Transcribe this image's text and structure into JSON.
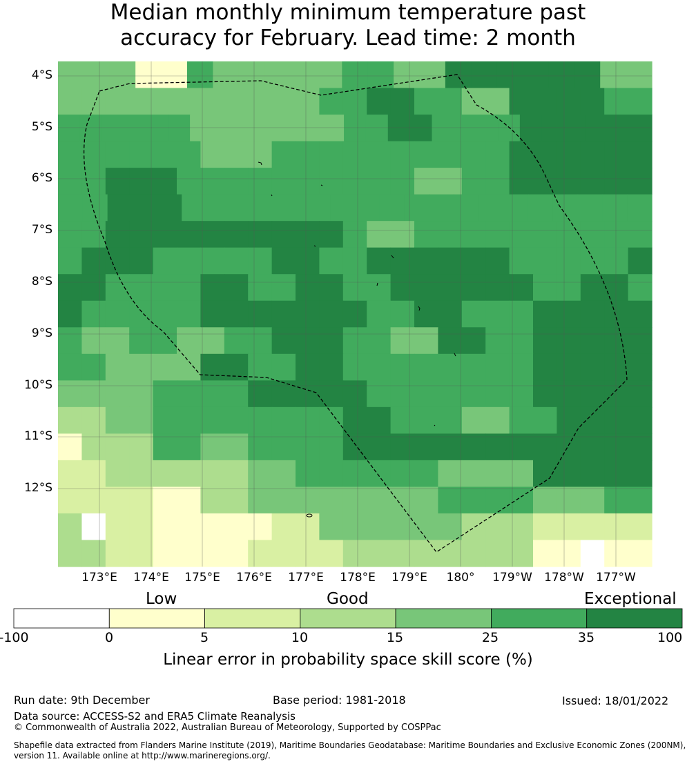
{
  "title_line1": "Median monthly minimum temperature past",
  "title_line2": "accuracy for February. Lead time: 2 month",
  "map": {
    "lat_labels": [
      "4°S",
      "5°S",
      "6°S",
      "7°S",
      "8°S",
      "9°S",
      "10°S",
      "11°S",
      "12°S"
    ],
    "lon_labels": [
      "173°E",
      "174°E",
      "175°E",
      "176°E",
      "177°E",
      "178°E",
      "179°E",
      "180°",
      "179°W",
      "178°W",
      "177°W"
    ],
    "skill_grid": [
      [
        4,
        4,
        4,
        1,
        1,
        5,
        4,
        4,
        4,
        4,
        4,
        5,
        5,
        4,
        4,
        6,
        6,
        6,
        6,
        6,
        6,
        4,
        4
      ],
      [
        4,
        4,
        4,
        4,
        4,
        4,
        4,
        4,
        4,
        4,
        4,
        5,
        5,
        6,
        6,
        5,
        5,
        4,
        4,
        6,
        6,
        6,
        6,
        5,
        5
      ],
      [
        5,
        5,
        5,
        5,
        5,
        5,
        4,
        4,
        4,
        4,
        4,
        4,
        4,
        5,
        5,
        6,
        6,
        5,
        5,
        5,
        5,
        6,
        6,
        6,
        6,
        6,
        6
      ],
      [
        5,
        5,
        5,
        5,
        5,
        5,
        4,
        4,
        4,
        5,
        5,
        5,
        5,
        5,
        5,
        5,
        5,
        5,
        5,
        6,
        6,
        6,
        6,
        6,
        6
      ],
      [
        5,
        5,
        6,
        6,
        6,
        5,
        5,
        5,
        5,
        5,
        5,
        5,
        5,
        5,
        5,
        4,
        4,
        5,
        5,
        6,
        6,
        6,
        6,
        6,
        6
      ],
      [
        5,
        5,
        6,
        6,
        6,
        5,
        5,
        5,
        5,
        5,
        5,
        5,
        5,
        5,
        5,
        5,
        5,
        5,
        5,
        5,
        5,
        5,
        5,
        5
      ],
      [
        5,
        5,
        6,
        6,
        6,
        6,
        6,
        6,
        6,
        6,
        6,
        6,
        5,
        4,
        4,
        5,
        5,
        5,
        5,
        5,
        5,
        5,
        5,
        5,
        5
      ],
      [
        5,
        6,
        6,
        6,
        5,
        5,
        5,
        5,
        5,
        6,
        6,
        5,
        5,
        6,
        6,
        6,
        6,
        6,
        6,
        5,
        5,
        5,
        5,
        5,
        6
      ],
      [
        6,
        6,
        5,
        5,
        5,
        5,
        6,
        6,
        5,
        5,
        6,
        6,
        5,
        5,
        6,
        6,
        6,
        6,
        6,
        6,
        5,
        5,
        6,
        6,
        5
      ],
      [
        6,
        5,
        5,
        5,
        5,
        5,
        6,
        6,
        6,
        6,
        6,
        6,
        6,
        5,
        5,
        6,
        6,
        5,
        5,
        5,
        6,
        6,
        6,
        6,
        6
      ],
      [
        5,
        4,
        4,
        5,
        5,
        4,
        4,
        5,
        5,
        6,
        6,
        6,
        5,
        5,
        4,
        4,
        6,
        6,
        5,
        5,
        6,
        6,
        6,
        6,
        6
      ],
      [
        5,
        5,
        4,
        4,
        4,
        4,
        6,
        6,
        5,
        5,
        6,
        6,
        5,
        5,
        5,
        5,
        5,
        5,
        5,
        5,
        6,
        6,
        6,
        6,
        6
      ],
      [
        4,
        4,
        4,
        4,
        5,
        5,
        5,
        5,
        6,
        6,
        6,
        6,
        6,
        5,
        5,
        5,
        5,
        5,
        5,
        5,
        6,
        6,
        6,
        6,
        6
      ],
      [
        3,
        3,
        4,
        4,
        5,
        5,
        5,
        5,
        5,
        5,
        5,
        5,
        6,
        6,
        5,
        5,
        5,
        4,
        4,
        5,
        5,
        6,
        6,
        6,
        6
      ],
      [
        1,
        3,
        3,
        3,
        5,
        5,
        4,
        4,
        5,
        5,
        5,
        5,
        6,
        6,
        6,
        6,
        6,
        6,
        6,
        6,
        6,
        6,
        6,
        6,
        6
      ],
      [
        2,
        2,
        3,
        3,
        3,
        3,
        3,
        3,
        4,
        4,
        5,
        5,
        5,
        5,
        5,
        5,
        4,
        4,
        4,
        4,
        6,
        6,
        6,
        6,
        6
      ],
      [
        2,
        2,
        2,
        2,
        1,
        1,
        3,
        3,
        4,
        4,
        4,
        4,
        4,
        4,
        4,
        4,
        5,
        5,
        5,
        5,
        4,
        4,
        4,
        5,
        5
      ],
      [
        3,
        0,
        2,
        2,
        1,
        1,
        1,
        1,
        1,
        2,
        2,
        4,
        4,
        4,
        4,
        4,
        4,
        3,
        3,
        3,
        2,
        2,
        2,
        2,
        2
      ],
      [
        3,
        3,
        2,
        2,
        1,
        1,
        1,
        1,
        2,
        2,
        2,
        2,
        3,
        3,
        3,
        3,
        3,
        3,
        3,
        3,
        1,
        1,
        0,
        1,
        1
      ]
    ]
  },
  "categories": [
    "Low",
    "Good",
    "Exceptional"
  ],
  "colorbar": {
    "ticks": [
      "-100",
      "0",
      "5",
      "10",
      "15",
      "25",
      "35",
      "100"
    ],
    "colors": [
      "#ffffff",
      "#ffffcc",
      "#d9f0a3",
      "#addd8e",
      "#78c679",
      "#41ab5d",
      "#238443"
    ],
    "title": "Linear error in probability space skill score (%)"
  },
  "footer": {
    "run_date": "Run date: 9th December",
    "base_period": "Base period: 1981-2018",
    "issued": "Issued: 18/01/2022",
    "data_source": "Data source: ACCESS-S2 and ERA5 Climate Reanalysis",
    "copyright": "© Commonwealth of Australia 2022, Australian Bureau of Meteorology, Supported by COSPPac",
    "shapefile_line1": "Shapefile data extracted from Flanders Marine Institute (2019), Maritime Boundaries Geodatabase: Maritime Boundaries and Exclusive Economic Zones (200NM),",
    "shapefile_line2": "version 11. Available online at http://www.marineregions.org/."
  }
}
